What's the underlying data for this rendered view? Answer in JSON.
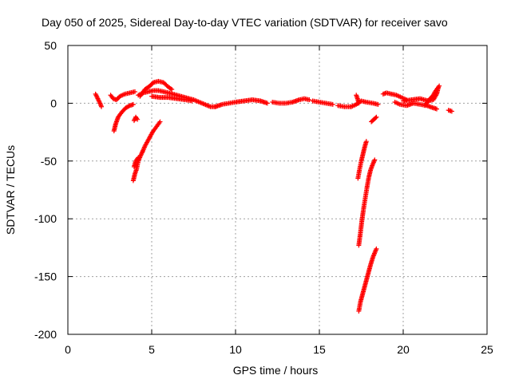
{
  "chart_data": {
    "type": "scatter",
    "title": "Day 050 of 2025, Sidereal Day-to-day VTEC variation (SDTVAR) for receiver savo",
    "xlabel": "GPS time / hours",
    "ylabel": "SDTVAR / TECUs",
    "xlim": [
      0,
      25
    ],
    "ylim": [
      -200,
      50
    ],
    "xticks": [
      0,
      5,
      10,
      15,
      20,
      25
    ],
    "yticks": [
      -200,
      -150,
      -100,
      -50,
      0,
      50
    ],
    "grid": true,
    "marker": "+",
    "color": "#ff0000",
    "series": [
      {
        "name": "SDTVAR",
        "segments": [
          [
            [
              1.65,
              8
            ],
            [
              1.75,
              5
            ],
            [
              1.85,
              2
            ],
            [
              1.95,
              -1
            ],
            [
              2.0,
              -3
            ]
          ],
          [
            [
              2.55,
              7
            ],
            [
              2.7,
              4
            ],
            [
              2.9,
              3
            ],
            [
              3.1,
              6
            ],
            [
              3.4,
              8
            ],
            [
              3.7,
              9
            ],
            [
              4.0,
              10
            ]
          ],
          [
            [
              2.75,
              -24
            ],
            [
              2.85,
              -18
            ],
            [
              3.0,
              -12
            ],
            [
              3.2,
              -8
            ],
            [
              3.45,
              -4
            ],
            [
              3.7,
              -2
            ],
            [
              3.9,
              -1
            ]
          ],
          [
            [
              3.95,
              -15
            ],
            [
              4.05,
              -12
            ],
            [
              4.15,
              -14
            ]
          ],
          [
            [
              3.9,
              -67
            ],
            [
              4.0,
              -61
            ],
            [
              4.1,
              -57
            ],
            [
              4.2,
              -50
            ],
            [
              4.35,
              -45
            ],
            [
              4.45,
              -42
            ]
          ],
          [
            [
              3.95,
              -55
            ],
            [
              4.05,
              -50
            ],
            [
              4.2,
              -47
            ]
          ],
          [
            [
              4.45,
              -42
            ],
            [
              4.6,
              -37
            ],
            [
              4.75,
              -33
            ],
            [
              4.9,
              -29
            ],
            [
              5.05,
              -25
            ],
            [
              5.2,
              -22
            ],
            [
              5.35,
              -19
            ],
            [
              5.5,
              -16
            ]
          ],
          [
            [
              4.2,
              7
            ],
            [
              4.5,
              9
            ],
            [
              4.8,
              10
            ],
            [
              5.1,
              11
            ],
            [
              5.4,
              11
            ],
            [
              5.7,
              10
            ],
            [
              6.0,
              9
            ],
            [
              6.5,
              7
            ],
            [
              7.0,
              5
            ],
            [
              7.5,
              3
            ],
            [
              8.0,
              0
            ],
            [
              8.5,
              -3
            ],
            [
              8.8,
              -3
            ]
          ],
          [
            [
              4.3,
              6
            ],
            [
              4.6,
              12
            ],
            [
              4.9,
              15
            ],
            [
              5.1,
              18
            ],
            [
              5.4,
              19
            ],
            [
              5.7,
              18
            ],
            [
              6.0,
              14
            ],
            [
              6.2,
              12
            ]
          ],
          [
            [
              5.0,
              6
            ],
            [
              5.5,
              5
            ],
            [
              6.0,
              5
            ],
            [
              6.5,
              4
            ],
            [
              7.0,
              3
            ],
            [
              7.4,
              2
            ]
          ],
          [
            [
              8.8,
              -3
            ],
            [
              9.2,
              -1
            ],
            [
              9.6,
              0
            ],
            [
              10.0,
              1
            ],
            [
              10.5,
              2
            ],
            [
              11.0,
              3
            ],
            [
              11.5,
              2
            ],
            [
              11.9,
              0
            ]
          ],
          [
            [
              12.2,
              1
            ],
            [
              12.6,
              0
            ],
            [
              13.0,
              0
            ],
            [
              13.4,
              1
            ],
            [
              13.8,
              3
            ],
            [
              14.1,
              4
            ],
            [
              14.4,
              3
            ]
          ],
          [
            [
              14.6,
              2
            ],
            [
              15.0,
              1
            ],
            [
              15.4,
              0
            ],
            [
              15.8,
              -1
            ]
          ],
          [
            [
              16.1,
              -2
            ],
            [
              16.5,
              -3
            ],
            [
              16.9,
              -3
            ]
          ],
          [
            [
              16.9,
              -3
            ],
            [
              17.2,
              -1
            ],
            [
              17.5,
              2
            ],
            [
              17.8,
              1
            ],
            [
              18.2,
              0
            ],
            [
              18.5,
              -1
            ]
          ],
          [
            [
              17.2,
              7
            ],
            [
              17.3,
              3
            ],
            [
              17.35,
              0
            ]
          ],
          [
            [
              18.1,
              -16
            ],
            [
              18.25,
              -14
            ],
            [
              18.4,
              -12
            ]
          ],
          [
            [
              17.3,
              -65
            ],
            [
              17.4,
              -57
            ],
            [
              17.5,
              -50
            ],
            [
              17.6,
              -44
            ],
            [
              17.7,
              -38
            ],
            [
              17.8,
              -33
            ]
          ],
          [
            [
              17.35,
              -123
            ],
            [
              17.45,
              -112
            ],
            [
              17.55,
              -100
            ],
            [
              17.65,
              -90
            ],
            [
              17.75,
              -81
            ],
            [
              17.85,
              -72
            ],
            [
              17.95,
              -64
            ],
            [
              18.05,
              -58
            ],
            [
              18.15,
              -54
            ],
            [
              18.3,
              -49
            ]
          ],
          [
            [
              17.35,
              -180
            ],
            [
              17.45,
              -172
            ],
            [
              17.6,
              -164
            ],
            [
              17.75,
              -156
            ],
            [
              17.9,
              -148
            ],
            [
              18.05,
              -140
            ],
            [
              18.2,
              -133
            ],
            [
              18.4,
              -126
            ]
          ],
          [
            [
              18.8,
              8
            ],
            [
              19.0,
              9
            ],
            [
              19.3,
              8
            ],
            [
              19.6,
              7
            ],
            [
              19.9,
              5
            ],
            [
              20.2,
              3
            ]
          ],
          [
            [
              19.5,
              1
            ],
            [
              19.8,
              -1
            ],
            [
              20.2,
              -2
            ],
            [
              20.6,
              0
            ],
            [
              21.0,
              -1
            ],
            [
              21.4,
              -2
            ],
            [
              21.8,
              -4
            ],
            [
              22.0,
              -5
            ]
          ],
          [
            [
              20.0,
              2
            ],
            [
              20.5,
              3
            ],
            [
              21.0,
              4
            ],
            [
              21.5,
              2
            ],
            [
              21.8,
              3
            ],
            [
              22.0,
              8
            ],
            [
              22.1,
              14
            ]
          ],
          [
            [
              21.3,
              -2
            ],
            [
              21.6,
              4
            ],
            [
              21.8,
              7
            ],
            [
              21.9,
              10
            ],
            [
              22.0,
              12
            ],
            [
              22.15,
              15
            ]
          ],
          [
            [
              22.7,
              -6
            ],
            [
              22.9,
              -7
            ]
          ]
        ]
      }
    ]
  }
}
